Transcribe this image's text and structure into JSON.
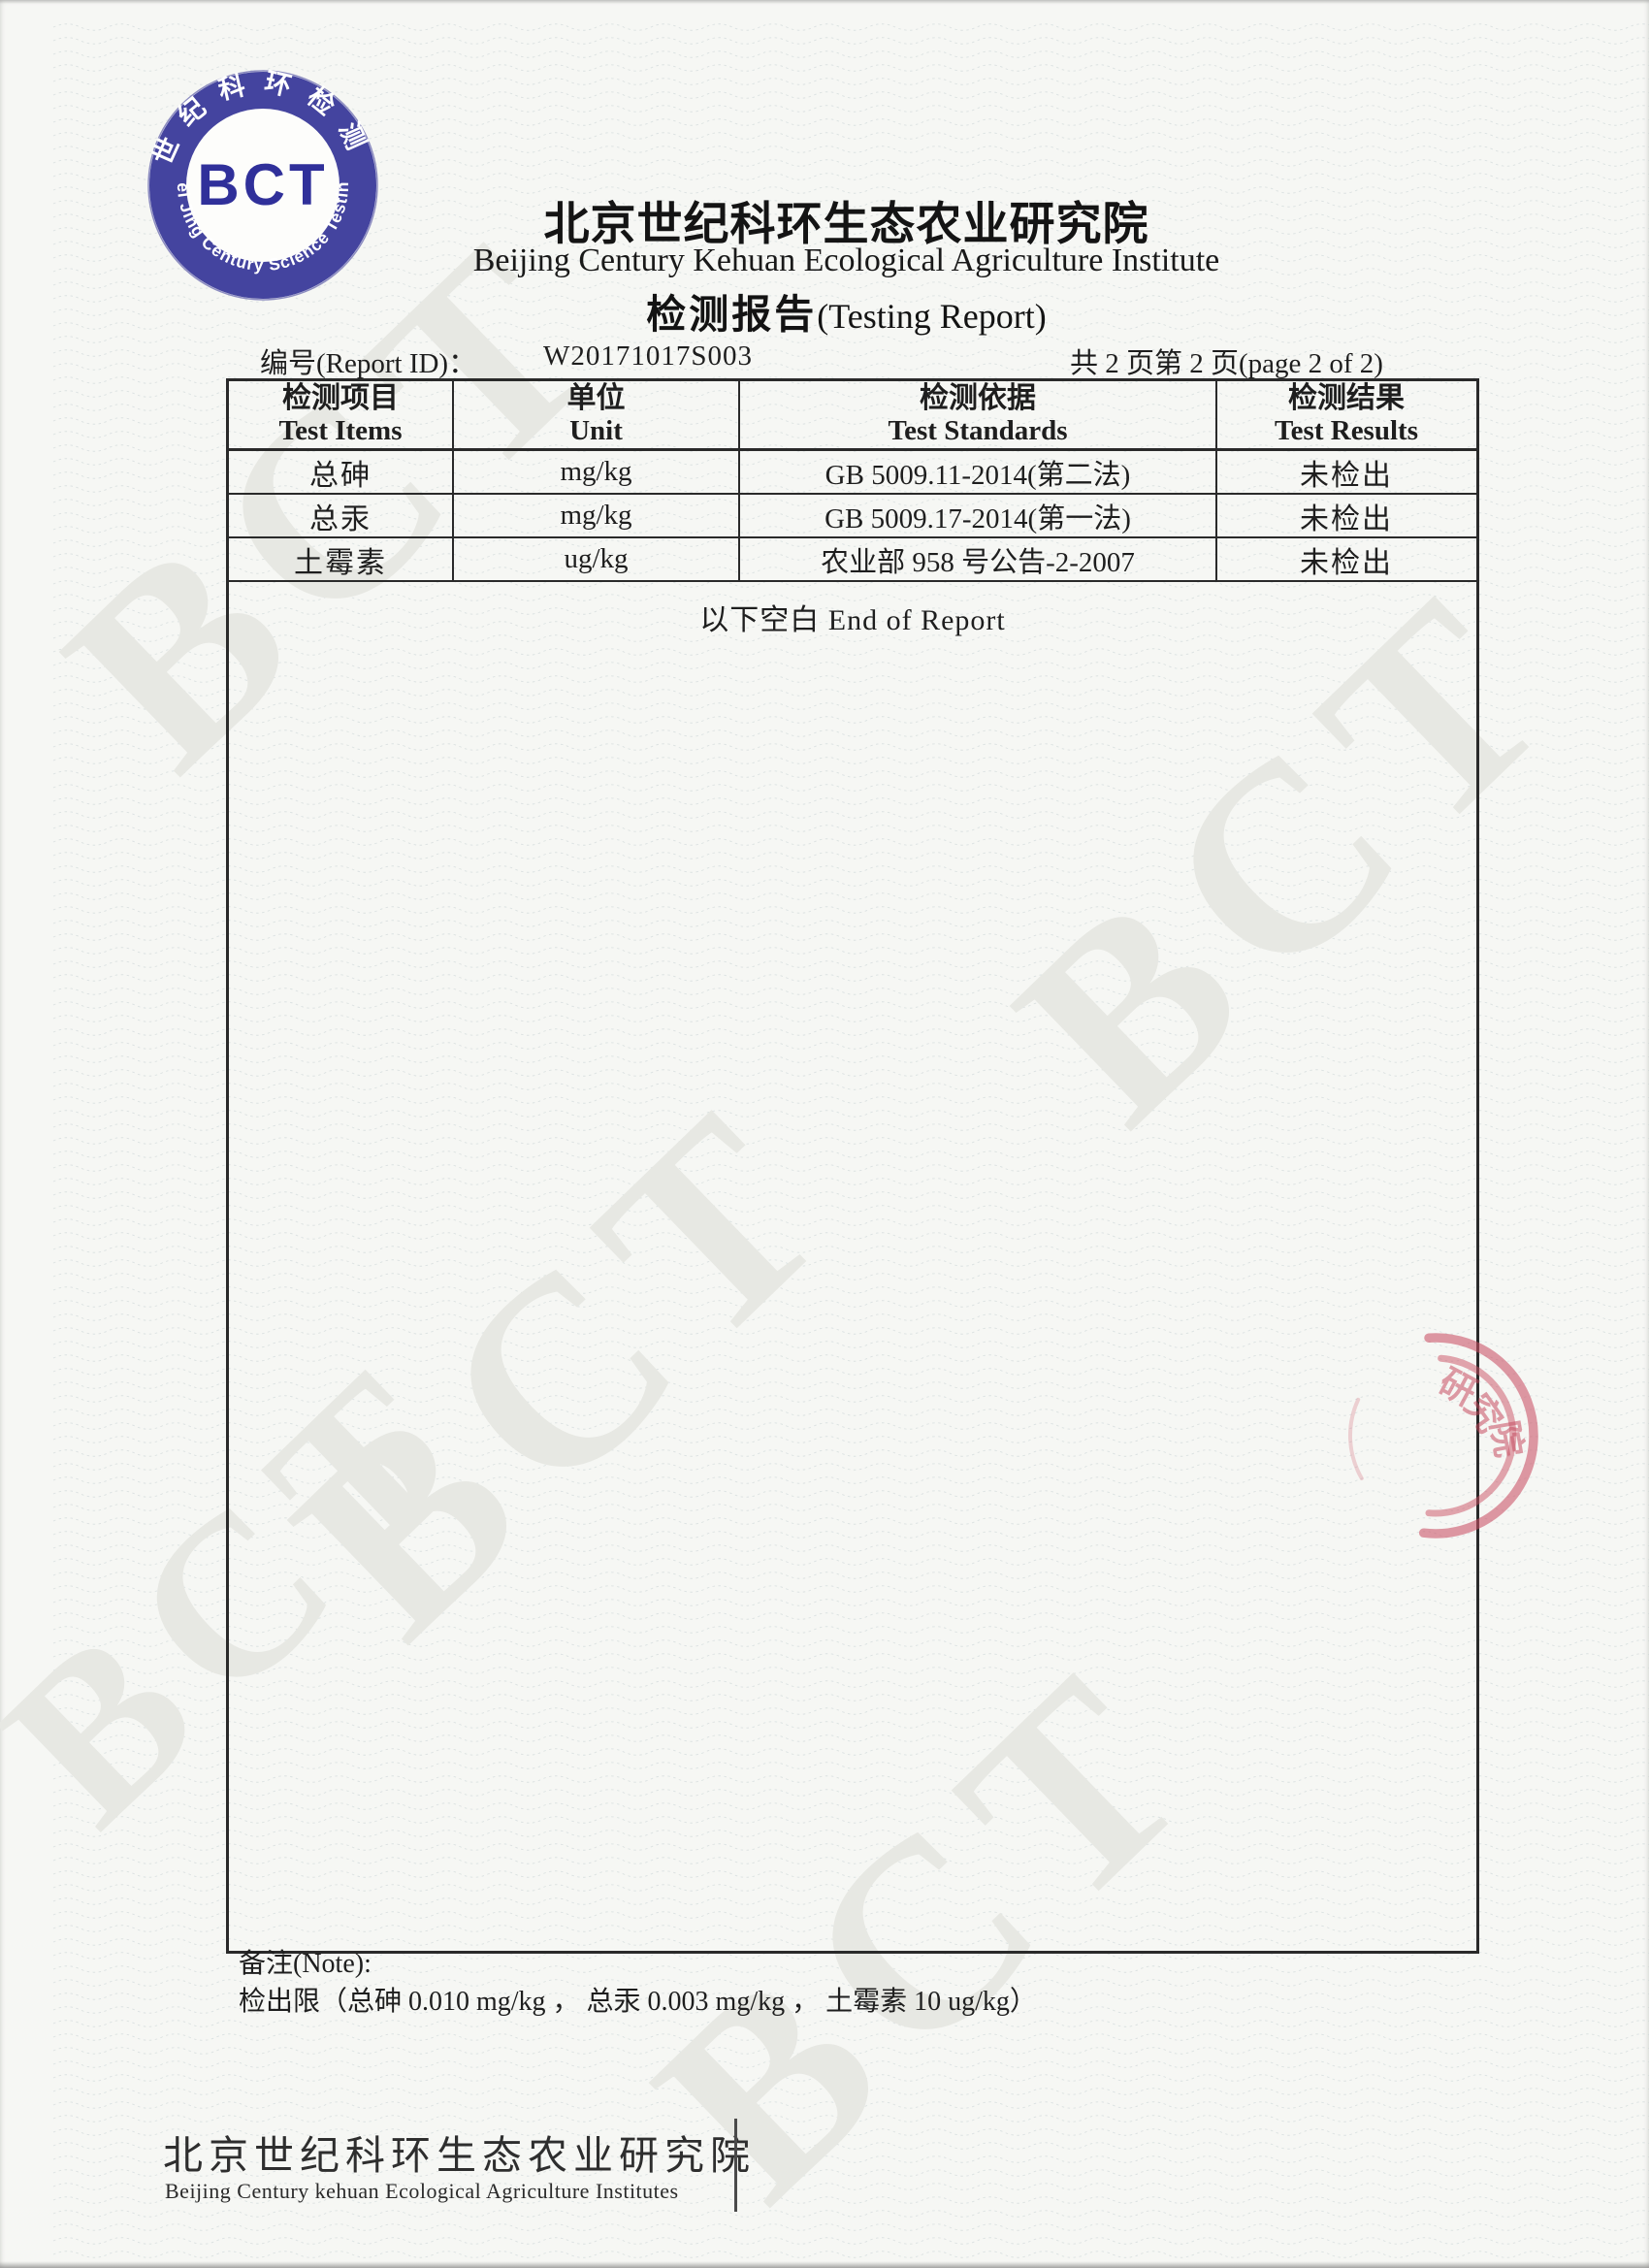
{
  "logo": {
    "abbr": "BCT",
    "ring_cn": "世纪科环检测",
    "ring_en": "Bei Jing Century Science Testing",
    "ring_color": "#44449f",
    "text_color": "#30309a"
  },
  "header": {
    "org_cn": "北京世纪科环生态农业研究院",
    "org_en": "Beijing Century Kehuan Ecological Agriculture Institute",
    "report_title_cn": "检测报告",
    "report_title_en": "(Testing Report)",
    "report_id_label": "编号(Report ID)：",
    "report_id": "W20171017S003",
    "page_info": "共 2 页第 2 页(page 2 of 2)"
  },
  "table": {
    "columns": [
      {
        "cn": "检测项目",
        "en": "Test Items"
      },
      {
        "cn": "单位",
        "en": "Unit"
      },
      {
        "cn": "检测依据",
        "en": "Test Standards"
      },
      {
        "cn": "检测结果",
        "en": "Test Results"
      }
    ],
    "rows": [
      {
        "item": "总砷",
        "unit": "mg/kg",
        "standard": "GB 5009.11-2014(第二法)",
        "result": "未检出"
      },
      {
        "item": "总汞",
        "unit": "mg/kg",
        "standard": "GB 5009.17-2014(第一法)",
        "result": "未检出"
      },
      {
        "item": "土霉素",
        "unit": "ug/kg",
        "standard": "农业部 958 号公告-2-2007",
        "result": "未检出"
      }
    ]
  },
  "end_of_report": "以下空白 End of Report",
  "note": {
    "label": "备注(Note):",
    "text": "检出限（总砷  0.010 mg/kg ， 总汞  0.003 mg/kg ， 土霉素  10 ug/kg）"
  },
  "stamp": {
    "visible_text": "研究院",
    "color": "#c94f63"
  },
  "watermark": {
    "text": "BCT"
  },
  "footer": {
    "org_cn": "北京世纪科环生态农业研究院",
    "org_en": "Beijing Century kehuan Ecological Agriculture Institutes"
  }
}
